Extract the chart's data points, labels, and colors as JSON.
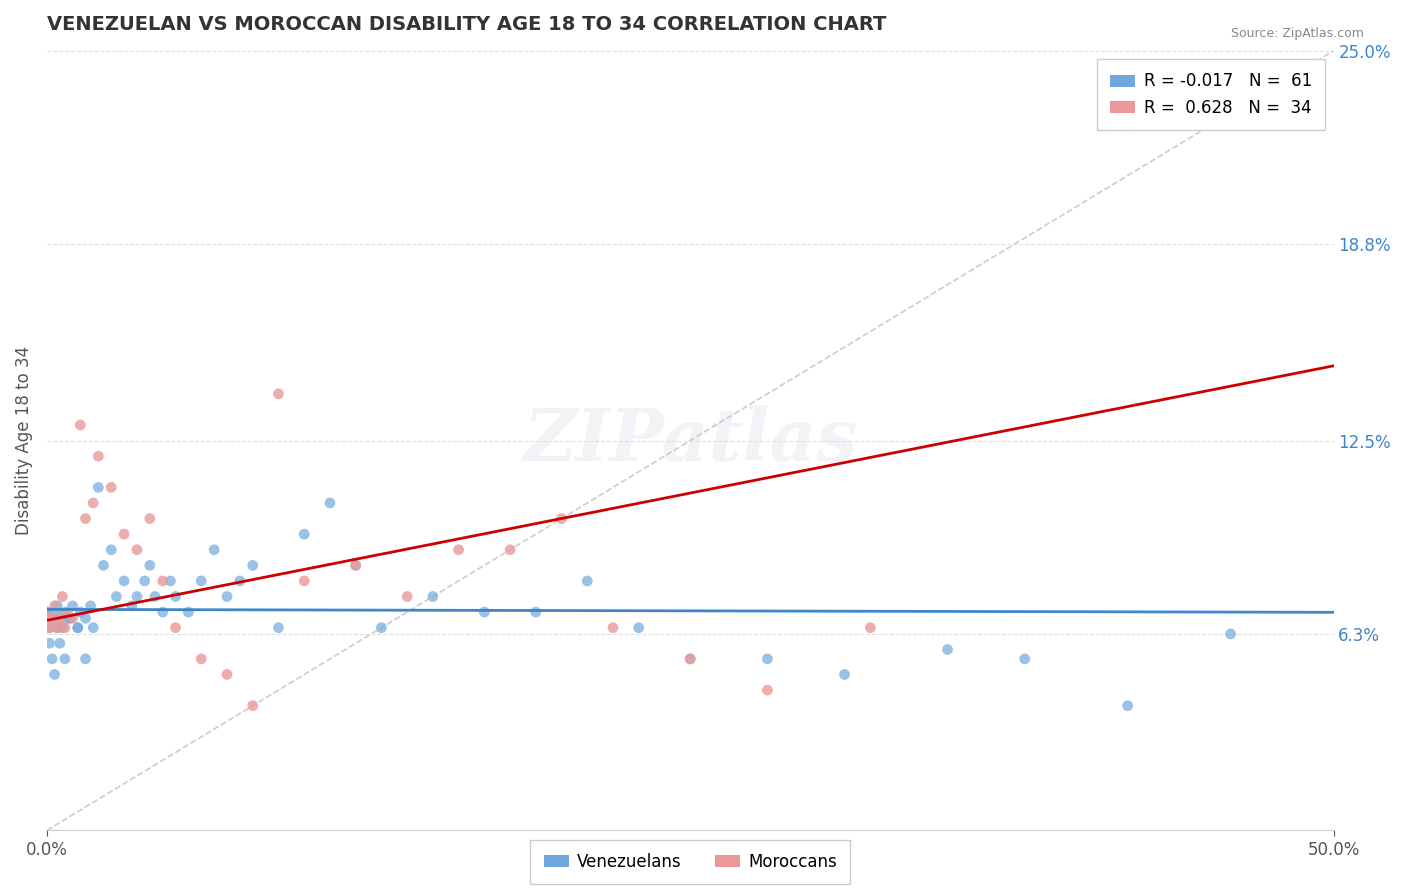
{
  "title": "VENEZUELAN VS MOROCCAN DISABILITY AGE 18 TO 34 CORRELATION CHART",
  "source_text": "Source: ZipAtlas.com",
  "ylabel": "Disability Age 18 to 34",
  "xlabel": "",
  "xlim": [
    0.0,
    0.5
  ],
  "ylim": [
    0.0,
    0.25
  ],
  "xticks": [
    0.0,
    0.5
  ],
  "xticklabels": [
    "0.0%",
    "50.0%"
  ],
  "ytick_right_labels": [
    "6.3%",
    "12.5%",
    "18.8%",
    "25.0%"
  ],
  "ytick_right_values": [
    0.063,
    0.125,
    0.188,
    0.25
  ],
  "watermark": "ZIPatlas",
  "venezuelan_color": "#6fa8dc",
  "moroccan_color": "#ea9999",
  "venezuelan_line_color": "#3d85c8",
  "moroccan_line_color": "#cc0000",
  "trend_line_color": "#cccccc",
  "legend_R_venezuelan": "-0.017",
  "legend_N_venezuelan": "61",
  "legend_R_moroccan": "0.628",
  "legend_N_moroccan": "34",
  "venezuelan_scatter_x": [
    0.0,
    0.001,
    0.002,
    0.003,
    0.004,
    0.005,
    0.006,
    0.007,
    0.008,
    0.01,
    0.012,
    0.013,
    0.015,
    0.017,
    0.018,
    0.02,
    0.022,
    0.025,
    0.027,
    0.03,
    0.033,
    0.035,
    0.038,
    0.04,
    0.042,
    0.045,
    0.048,
    0.05,
    0.055,
    0.06,
    0.065,
    0.07,
    0.075,
    0.08,
    0.09,
    0.1,
    0.11,
    0.12,
    0.13,
    0.15,
    0.17,
    0.19,
    0.21,
    0.23,
    0.25,
    0.28,
    0.31,
    0.35,
    0.38,
    0.42,
    0.46,
    0.0,
    0.001,
    0.002,
    0.003,
    0.004,
    0.005,
    0.007,
    0.009,
    0.012,
    0.015
  ],
  "venezuelan_scatter_y": [
    0.07,
    0.065,
    0.068,
    0.07,
    0.072,
    0.068,
    0.065,
    0.07,
    0.068,
    0.072,
    0.065,
    0.07,
    0.068,
    0.072,
    0.065,
    0.11,
    0.085,
    0.09,
    0.075,
    0.08,
    0.072,
    0.075,
    0.08,
    0.085,
    0.075,
    0.07,
    0.08,
    0.075,
    0.07,
    0.08,
    0.09,
    0.075,
    0.08,
    0.085,
    0.065,
    0.095,
    0.105,
    0.085,
    0.065,
    0.075,
    0.07,
    0.07,
    0.08,
    0.065,
    0.055,
    0.055,
    0.05,
    0.058,
    0.055,
    0.04,
    0.063,
    0.07,
    0.06,
    0.055,
    0.05,
    0.065,
    0.06,
    0.055,
    0.068,
    0.065,
    0.055
  ],
  "moroccan_scatter_x": [
    0.0,
    0.001,
    0.002,
    0.003,
    0.004,
    0.005,
    0.006,
    0.007,
    0.008,
    0.01,
    0.013,
    0.015,
    0.018,
    0.02,
    0.025,
    0.03,
    0.035,
    0.04,
    0.045,
    0.05,
    0.06,
    0.07,
    0.08,
    0.09,
    0.1,
    0.12,
    0.14,
    0.16,
    0.18,
    0.2,
    0.22,
    0.25,
    0.28,
    0.32
  ],
  "moroccan_scatter_y": [
    0.07,
    0.065,
    0.068,
    0.072,
    0.065,
    0.068,
    0.075,
    0.065,
    0.07,
    0.068,
    0.13,
    0.1,
    0.105,
    0.12,
    0.11,
    0.095,
    0.09,
    0.1,
    0.08,
    0.065,
    0.055,
    0.05,
    0.04,
    0.14,
    0.08,
    0.085,
    0.075,
    0.09,
    0.09,
    0.1,
    0.065,
    0.055,
    0.045,
    0.065
  ],
  "background_color": "#ffffff",
  "grid_color": "#e0e0e0"
}
